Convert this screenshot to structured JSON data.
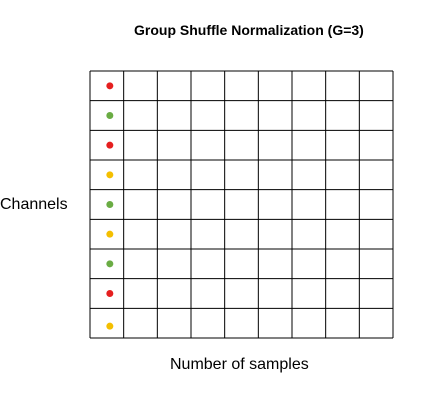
{
  "title": "Group Shuffle Normalization (G=3)",
  "y_label": "Channels",
  "x_label": "Number of samples",
  "grid": {
    "columns": 9,
    "channels": [
      {
        "group_color": "red"
      },
      {
        "group_color": "green"
      },
      {
        "group_color": "red"
      },
      {
        "group_color": "yellow"
      },
      {
        "group_color": "green"
      },
      {
        "group_color": "yellow"
      },
      {
        "group_color": "green"
      },
      {
        "group_color": "red"
      },
      {
        "group_color": "yellow"
      }
    ]
  },
  "colors": {
    "red": "#e51f1f",
    "green": "#6aac44",
    "yellow": "#f4bf00",
    "grid_line": "#000000"
  }
}
